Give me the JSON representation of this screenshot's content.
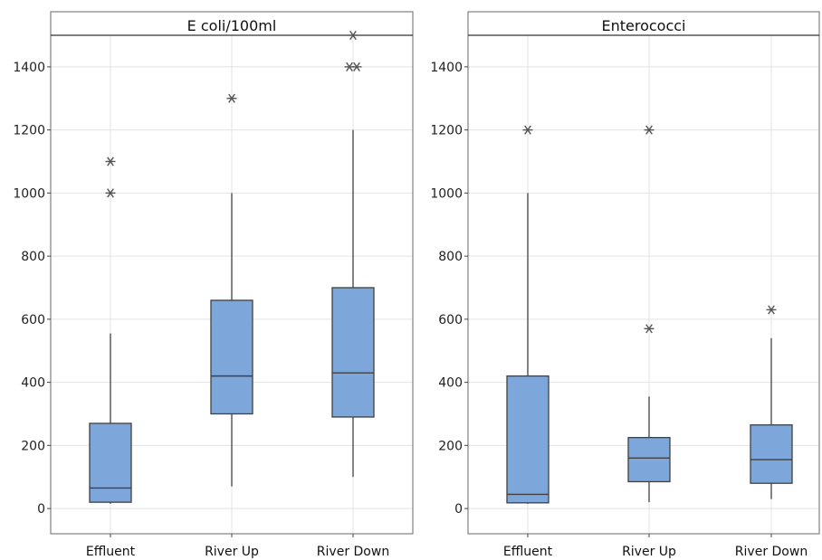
{
  "colors": {
    "box_fill": "#7da6db",
    "box_stroke": "#404040",
    "grid": "#e3e3e3",
    "outlier": "#555555",
    "frame": "#808080"
  },
  "chart_data": [
    {
      "type": "box",
      "title": "E coli/100ml",
      "categories": [
        "Effluent",
        "River Up",
        "River Down"
      ],
      "y_ticks": [
        0,
        200,
        400,
        600,
        800,
        1000,
        1200,
        1400
      ],
      "ylim": [
        -80,
        1500
      ],
      "grid": true,
      "boxes": [
        {
          "category": "Effluent",
          "whisker_low": 15,
          "q1": 20,
          "median": 65,
          "q3": 270,
          "whisker_high": 555,
          "outliers": [
            1000,
            1100
          ]
        },
        {
          "category": "River Up",
          "whisker_low": 70,
          "q1": 300,
          "median": 420,
          "q3": 660,
          "whisker_high": 1000,
          "outliers": [
            1300
          ]
        },
        {
          "category": "River Down",
          "whisker_low": 100,
          "q1": 290,
          "median": 430,
          "q3": 700,
          "whisker_high": 1200,
          "outliers": [
            1400,
            1400,
            1500
          ]
        }
      ]
    },
    {
      "type": "box",
      "title": "Enterococci",
      "categories": [
        "Effluent",
        "River Up",
        "River Down"
      ],
      "y_ticks": [
        0,
        200,
        400,
        600,
        800,
        1000,
        1200,
        1400
      ],
      "ylim": [
        -80,
        1500
      ],
      "grid": true,
      "boxes": [
        {
          "category": "Effluent",
          "whisker_low": 15,
          "q1": 18,
          "median": 45,
          "q3": 420,
          "whisker_high": 1000,
          "outliers": [
            1200
          ]
        },
        {
          "category": "River Up",
          "whisker_low": 20,
          "q1": 85,
          "median": 160,
          "q3": 225,
          "whisker_high": 355,
          "outliers": [
            570,
            1200
          ]
        },
        {
          "category": "River Down",
          "whisker_low": 30,
          "q1": 80,
          "median": 155,
          "q3": 265,
          "whisker_high": 540,
          "outliers": [
            630
          ]
        }
      ]
    }
  ]
}
